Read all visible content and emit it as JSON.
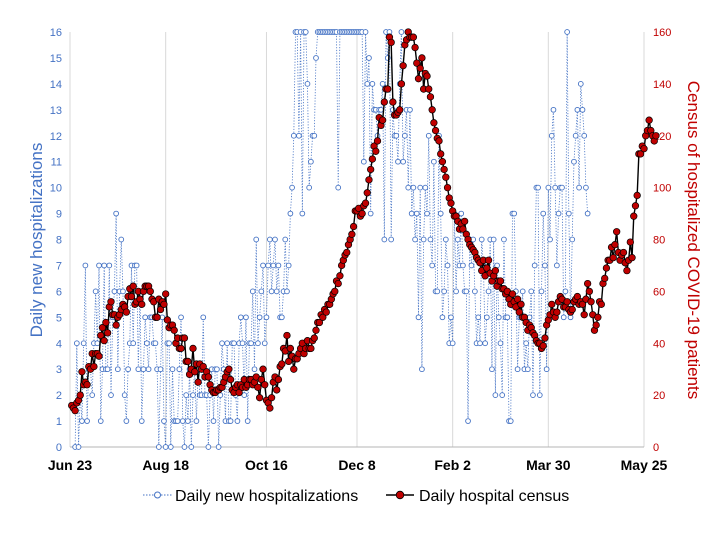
{
  "chart_data": {
    "type": "line",
    "title": "",
    "xlabel": "",
    "ylabel_left": "Daily new hospitalizations",
    "ylabel_right": "Census of hospitalized COVID-19  patients",
    "x_tick_labels": [
      "Jun 23",
      "Aug 18",
      "Oct 16",
      "Dec 8",
      "Feb 2",
      "Mar 30",
      "May 25"
    ],
    "x_ticks": [
      "2020-06-23",
      "2020-08-18",
      "2020-10-16",
      "2020-12-08",
      "2021-02-02",
      "2021-03-30",
      "2021-05-25"
    ],
    "xlim": [
      "2020-06-23",
      "2021-05-25"
    ],
    "ylim_left": [
      0,
      16
    ],
    "ylim_right": [
      0,
      160
    ],
    "y_ticks_left": [
      0,
      1,
      2,
      3,
      4,
      5,
      6,
      7,
      8,
      9,
      10,
      11,
      12,
      13,
      14,
      15,
      16
    ],
    "y_ticks_right": [
      0,
      20,
      40,
      60,
      80,
      100,
      120,
      140,
      160
    ],
    "grid": "vertical",
    "legend": "bottom",
    "series": [
      {
        "name": "Daily new hospitalizations",
        "axis": "left",
        "color": "#4472c4",
        "style": "dotted line, hollow circle markers",
        "start": "2020-06-26",
        "values": [
          0,
          4,
          0,
          2,
          1,
          4,
          7,
          1,
          3,
          3,
          2,
          4,
          6,
          4,
          7,
          1,
          3,
          7,
          3,
          3,
          7,
          2,
          5,
          6,
          9,
          3,
          6,
          8,
          6,
          2,
          1,
          3,
          4,
          7,
          4,
          7,
          7,
          3,
          6,
          1,
          3,
          5,
          4,
          3,
          5,
          5,
          4,
          4,
          3,
          0,
          3,
          5,
          1,
          0,
          4,
          4,
          0,
          3,
          1,
          1,
          1,
          3,
          5,
          1,
          0,
          2,
          1,
          3,
          0,
          2,
          3,
          1,
          3,
          2,
          2,
          5,
          2,
          2,
          0,
          2,
          3,
          1,
          3,
          3,
          0,
          2,
          4,
          3,
          1,
          4,
          1,
          1,
          4,
          4,
          2,
          1,
          4,
          5,
          4,
          2,
          5,
          1,
          4,
          4,
          6,
          3,
          8,
          4,
          5,
          6,
          7,
          4,
          5,
          7,
          8,
          6,
          7,
          8,
          6,
          7,
          5,
          5,
          6,
          8,
          6,
          7,
          9,
          10,
          12,
          16,
          16,
          12,
          16,
          9,
          16,
          16,
          14,
          10,
          11,
          12,
          12,
          15,
          16,
          16,
          16,
          16,
          16,
          16,
          16,
          16,
          16,
          16,
          16,
          16,
          10,
          16,
          16,
          16,
          16,
          16,
          16,
          16,
          16,
          16,
          16,
          16,
          16,
          16,
          16,
          11,
          16,
          14,
          15,
          9,
          14,
          13,
          13,
          12,
          13,
          13,
          14,
          8,
          16,
          15,
          16,
          8,
          13,
          12,
          12,
          11,
          14,
          16,
          11,
          12,
          13,
          10,
          13,
          9,
          10,
          8,
          9,
          5,
          10,
          3,
          8,
          10,
          9,
          12,
          8,
          7,
          11,
          6,
          6,
          12,
          9,
          5,
          6,
          8,
          7,
          4,
          5,
          4,
          9,
          6,
          8,
          7,
          9,
          7,
          6,
          6,
          1,
          8,
          7,
          8,
          6,
          4,
          5,
          4,
          8,
          7,
          4,
          5,
          6,
          8,
          3,
          8,
          2,
          7,
          5,
          4,
          2,
          8,
          5,
          5,
          1,
          1,
          9,
          9,
          6,
          3,
          5,
          5,
          6,
          3,
          4,
          3,
          5,
          6,
          2,
          7,
          10,
          10,
          2,
          6,
          9,
          7,
          3,
          10,
          8,
          12,
          13,
          10,
          7,
          9,
          10,
          10,
          5,
          6,
          16,
          9,
          5,
          8,
          11,
          12,
          13,
          10,
          14,
          13,
          12,
          10,
          9
        ]
      },
      {
        "name": "Daily hospital census",
        "axis": "right",
        "color": "#000000",
        "marker_color": "#c00000",
        "style": "solid line, filled circle markers",
        "start": "2020-06-24",
        "values": [
          16,
          15,
          14,
          17,
          18,
          20,
          29,
          24,
          25,
          24,
          31,
          30,
          36,
          31,
          36,
          36,
          35,
          43,
          46,
          41,
          48,
          44,
          54,
          56,
          51,
          51,
          47,
          50,
          51,
          53,
          55,
          54,
          52,
          58,
          61,
          58,
          62,
          55,
          56,
          60,
          57,
          55,
          60,
          62,
          62,
          62,
          60,
          57,
          56,
          50,
          50,
          57,
          53,
          56,
          55,
          59,
          49,
          46,
          47,
          47,
          45,
          40,
          42,
          38,
          38,
          42,
          42,
          33,
          33,
          28,
          30,
          38,
          29,
          32,
          25,
          32,
          30,
          31,
          27,
          29,
          27,
          24,
          22,
          21,
          21,
          22,
          22,
          23,
          23,
          25,
          27,
          29,
          30,
          26,
          22,
          21,
          23,
          24,
          21,
          24,
          23,
          26,
          23,
          24,
          26,
          26,
          24,
          25,
          27,
          23,
          19,
          26,
          30,
          24,
          18,
          17,
          15,
          19,
          25,
          27,
          22,
          26,
          31,
          32,
          38,
          37,
          43,
          33,
          38,
          35,
          30,
          34,
          34,
          36,
          38,
          40,
          36,
          38,
          41,
          38,
          38,
          41,
          42,
          45,
          48,
          48,
          51,
          50,
          53,
          52,
          55,
          55,
          57,
          59,
          60,
          64,
          63,
          66,
          70,
          72,
          74,
          75,
          78,
          80,
          82,
          85,
          91,
          91,
          92,
          89,
          90,
          93,
          94,
          98,
          103,
          107,
          111,
          116,
          114,
          118,
          127,
          124,
          126,
          133,
          138,
          138,
          158,
          156,
          133,
          128,
          128,
          129,
          130,
          140,
          147,
          155,
          157,
          160,
          158,
          158,
          158,
          154,
          148,
          142,
          146,
          150,
          138,
          144,
          143,
          138,
          135,
          130,
          125,
          122,
          119,
          118,
          113,
          110,
          107,
          104,
          100,
          96,
          94,
          91,
          89,
          89,
          87,
          84,
          86,
          84,
          87,
          82,
          80,
          78,
          77,
          76,
          75,
          73,
          72,
          71,
          68,
          72,
          66,
          69,
          72,
          67,
          64,
          66,
          68,
          62,
          64,
          64,
          61,
          61,
          59,
          60,
          57,
          55,
          59,
          56,
          54,
          57,
          52,
          55,
          50,
          50,
          48,
          45,
          47,
          46,
          44,
          43,
          41,
          40,
          40,
          38,
          39,
          42,
          47,
          49,
          51,
          55,
          52,
          50,
          52,
          56,
          58,
          57,
          54,
          54,
          56,
          53,
          52,
          53,
          56,
          57,
          58,
          55,
          56,
          55,
          51,
          57,
          63,
          60,
          56,
          51,
          45,
          47,
          50,
          56,
          55,
          63,
          65,
          69,
          72,
          72,
          77,
          73,
          78,
          83,
          75,
          72,
          74,
          75,
          71,
          68,
          72,
          79,
          73,
          89,
          93,
          97,
          113,
          113,
          116,
          115,
          120,
          122,
          126,
          122,
          120,
          118,
          120
        ]
      }
    ]
  }
}
